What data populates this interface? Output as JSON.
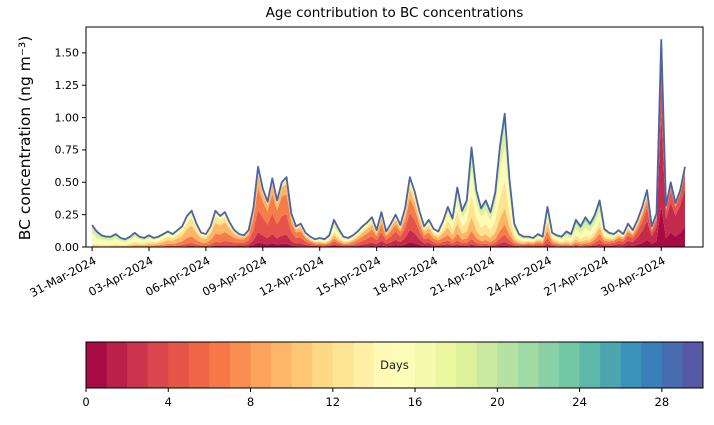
{
  "figure": {
    "title": "Age contribution to BC concentrations",
    "ylabel": "BC concentration (ng m⁻³)"
  },
  "chart_data": {
    "type": "area",
    "subtype": "stacked-age-contributions with total line overlay",
    "title": "Age contribution to BC concentrations",
    "ylabel": "BC concentration (ng m⁻³)",
    "xlabel": "",
    "x_tick_labels": [
      "31-Mar-2024",
      "03-Apr-2024",
      "06-Apr-2024",
      "09-Apr-2024",
      "12-Apr-2024",
      "15-Apr-2024",
      "18-Apr-2024",
      "21-Apr-2024",
      "24-Apr-2024",
      "27-Apr-2024",
      "30-Apr-2024"
    ],
    "x_tick_days": [
      0,
      3,
      6,
      9,
      12,
      15,
      18,
      21,
      24,
      27,
      30
    ],
    "y_tick_labels": [
      "0.00",
      "0.25",
      "0.50",
      "0.75",
      "1.00",
      "1.25",
      "1.50"
    ],
    "y_tick_values": [
      0,
      0.25,
      0.5,
      0.75,
      1.0,
      1.25,
      1.5
    ],
    "ylim": [
      0,
      1.7
    ],
    "xlim_days": [
      -0.32,
      32.2
    ],
    "grid": false,
    "line_color": "#4a64a8",
    "series_start_day": 0.0,
    "series_step_days": 0.25,
    "total_bc": [
      0.17,
      0.12,
      0.09,
      0.08,
      0.08,
      0.1,
      0.07,
      0.06,
      0.08,
      0.11,
      0.08,
      0.07,
      0.09,
      0.07,
      0.08,
      0.1,
      0.12,
      0.1,
      0.13,
      0.16,
      0.24,
      0.28,
      0.18,
      0.11,
      0.1,
      0.16,
      0.28,
      0.24,
      0.27,
      0.19,
      0.13,
      0.1,
      0.09,
      0.13,
      0.3,
      0.62,
      0.45,
      0.35,
      0.53,
      0.36,
      0.5,
      0.54,
      0.26,
      0.16,
      0.18,
      0.11,
      0.08,
      0.06,
      0.07,
      0.06,
      0.09,
      0.21,
      0.14,
      0.08,
      0.07,
      0.09,
      0.12,
      0.16,
      0.19,
      0.23,
      0.13,
      0.27,
      0.12,
      0.18,
      0.25,
      0.17,
      0.3,
      0.54,
      0.43,
      0.28,
      0.16,
      0.21,
      0.14,
      0.12,
      0.2,
      0.31,
      0.22,
      0.46,
      0.28,
      0.36,
      0.77,
      0.44,
      0.3,
      0.36,
      0.27,
      0.42,
      0.78,
      1.03,
      0.52,
      0.18,
      0.1,
      0.08,
      0.08,
      0.07,
      0.1,
      0.08,
      0.31,
      0.11,
      0.09,
      0.08,
      0.12,
      0.1,
      0.21,
      0.16,
      0.23,
      0.18,
      0.25,
      0.36,
      0.14,
      0.11,
      0.1,
      0.13,
      0.1,
      0.18,
      0.13,
      0.21,
      0.31,
      0.44,
      0.16,
      0.26,
      1.6,
      0.32,
      0.5,
      0.34,
      0.44,
      0.62
    ],
    "age_bands": [
      {
        "label": "0-1 days",
        "color": "#a70a44"
      },
      {
        "label": "1-3 days",
        "color": "#c32a4b"
      },
      {
        "label": "3-5 days",
        "color": "#e4544a"
      },
      {
        "label": "5-8 days",
        "color": "#f57d4a"
      },
      {
        "label": "8-11 days",
        "color": "#fdb567"
      },
      {
        "label": "11-14 days",
        "color": "#fee391"
      },
      {
        "label": "14-17 days",
        "color": "#fbfdb6"
      },
      {
        "label": "17-20 days",
        "color": "#dcf19a"
      },
      {
        "label": "20-24 days",
        "color": "#a4d9a4"
      },
      {
        "label": "24-30 days",
        "color": "#60c1a6"
      }
    ],
    "band_fraction_keyframe_days": [
      0,
      1,
      2,
      3,
      4,
      5,
      6,
      7,
      8,
      9,
      10,
      11,
      12,
      13,
      14,
      15,
      16,
      17,
      18,
      19,
      20,
      21,
      22,
      23,
      24,
      25,
      26,
      27,
      28,
      29,
      30,
      31
    ],
    "band_fractions": [
      [
        0,
        0,
        0,
        0,
        0.05,
        0.1,
        0.45,
        0.25,
        0.12,
        0.03
      ],
      [
        0,
        0,
        0,
        0.02,
        0.06,
        0.12,
        0.42,
        0.25,
        0.1,
        0.03
      ],
      [
        0,
        0,
        0.02,
        0.04,
        0.1,
        0.15,
        0.38,
        0.2,
        0.09,
        0.02
      ],
      [
        0,
        0,
        0.03,
        0.08,
        0.16,
        0.2,
        0.32,
        0.14,
        0.06,
        0.01
      ],
      [
        0,
        0.02,
        0.05,
        0.14,
        0.24,
        0.22,
        0.22,
        0.08,
        0.03,
        0
      ],
      [
        0,
        0.03,
        0.08,
        0.18,
        0.28,
        0.22,
        0.15,
        0.05,
        0.01,
        0
      ],
      [
        0,
        0.03,
        0.08,
        0.2,
        0.32,
        0.2,
        0.12,
        0.04,
        0.01,
        0
      ],
      [
        0.01,
        0.04,
        0.12,
        0.26,
        0.28,
        0.16,
        0.09,
        0.03,
        0.01,
        0
      ],
      [
        0.04,
        0.1,
        0.22,
        0.28,
        0.2,
        0.1,
        0.04,
        0.02,
        0,
        0
      ],
      [
        0.06,
        0.14,
        0.3,
        0.28,
        0.14,
        0.05,
        0.02,
        0.01,
        0,
        0
      ],
      [
        0.05,
        0.13,
        0.3,
        0.3,
        0.14,
        0.05,
        0.02,
        0.01,
        0,
        0
      ],
      [
        0.04,
        0.12,
        0.26,
        0.26,
        0.16,
        0.08,
        0.05,
        0.02,
        0.01,
        0
      ],
      [
        0.02,
        0.08,
        0.15,
        0.15,
        0.15,
        0.12,
        0.15,
        0.1,
        0.06,
        0.02
      ],
      [
        0.02,
        0.06,
        0.1,
        0.1,
        0.12,
        0.14,
        0.2,
        0.15,
        0.08,
        0.03
      ],
      [
        0.02,
        0.08,
        0.16,
        0.2,
        0.18,
        0.14,
        0.12,
        0.06,
        0.03,
        0.01
      ],
      [
        0.04,
        0.12,
        0.24,
        0.24,
        0.16,
        0.1,
        0.06,
        0.03,
        0.01,
        0
      ],
      [
        0.06,
        0.16,
        0.26,
        0.22,
        0.14,
        0.08,
        0.05,
        0.02,
        0.01,
        0
      ],
      [
        0.07,
        0.18,
        0.24,
        0.2,
        0.13,
        0.08,
        0.06,
        0.03,
        0.01,
        0
      ],
      [
        0.03,
        0.08,
        0.16,
        0.2,
        0.2,
        0.14,
        0.1,
        0.06,
        0.02,
        0.01
      ],
      [
        0.01,
        0.04,
        0.08,
        0.12,
        0.18,
        0.2,
        0.2,
        0.11,
        0.05,
        0.01
      ],
      [
        0.01,
        0.02,
        0.05,
        0.08,
        0.14,
        0.22,
        0.26,
        0.14,
        0.06,
        0.02
      ],
      [
        0.01,
        0.02,
        0.04,
        0.07,
        0.12,
        0.22,
        0.28,
        0.16,
        0.06,
        0.02
      ],
      [
        0.01,
        0.03,
        0.06,
        0.08,
        0.12,
        0.2,
        0.26,
        0.16,
        0.06,
        0.02
      ],
      [
        0.02,
        0.08,
        0.14,
        0.12,
        0.12,
        0.14,
        0.18,
        0.12,
        0.06,
        0.02
      ],
      [
        0.02,
        0.06,
        0.14,
        0.18,
        0.18,
        0.16,
        0.14,
        0.08,
        0.03,
        0.01
      ],
      [
        0.01,
        0.03,
        0.06,
        0.08,
        0.12,
        0.16,
        0.24,
        0.18,
        0.09,
        0.03
      ],
      [
        0.01,
        0.02,
        0.04,
        0.06,
        0.1,
        0.14,
        0.26,
        0.22,
        0.11,
        0.04
      ],
      [
        0.02,
        0.06,
        0.12,
        0.14,
        0.14,
        0.14,
        0.18,
        0.12,
        0.06,
        0.02
      ],
      [
        0.05,
        0.16,
        0.22,
        0.18,
        0.12,
        0.1,
        0.09,
        0.05,
        0.02,
        0.01
      ],
      [
        0.1,
        0.3,
        0.24,
        0.14,
        0.08,
        0.06,
        0.05,
        0.02,
        0.01,
        0
      ],
      [
        0.2,
        0.45,
        0.2,
        0.06,
        0.04,
        0.03,
        0.02,
        0,
        0,
        0
      ],
      [
        0.25,
        0.48,
        0.18,
        0.05,
        0.02,
        0.01,
        0.01,
        0,
        0,
        0
      ]
    ],
    "colorbar": {
      "label": "Days",
      "orientation": "horizontal",
      "range": [
        0,
        30
      ],
      "segments": 30,
      "tick_labels": [
        "0",
        "4",
        "8",
        "12",
        "16",
        "20",
        "24",
        "28"
      ],
      "tick_values": [
        0,
        4,
        8,
        12,
        16,
        20,
        24,
        28
      ],
      "spectral_anchors": [
        "#9e0142",
        "#d53e4f",
        "#f46d43",
        "#fdae61",
        "#fee08b",
        "#ffffbf",
        "#e6f598",
        "#abdda4",
        "#66c2a5",
        "#3288bd",
        "#5e4fa2"
      ]
    }
  }
}
